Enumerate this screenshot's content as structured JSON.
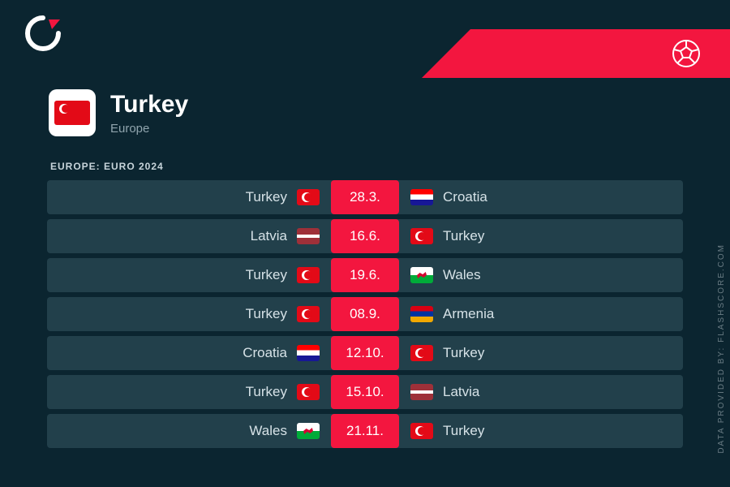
{
  "colors": {
    "background": "#0b2530",
    "accent": "#f3163f",
    "row_bg": "#22404b",
    "text_primary": "#ffffff",
    "text_secondary": "#90a4ad",
    "text_row": "#d6e2e7"
  },
  "header": {
    "team": "Turkey",
    "region": "Europe",
    "flag": "tr"
  },
  "section_title": "EUROPE: EURO 2024",
  "watermark": "DATA PROVIDED BY: FLASHSCORE.COM",
  "fixtures": [
    {
      "home": "Turkey",
      "home_flag": "tr",
      "date": "28.3.",
      "away": "Croatia",
      "away_flag": "hr"
    },
    {
      "home": "Latvia",
      "home_flag": "lv",
      "date": "16.6.",
      "away": "Turkey",
      "away_flag": "tr"
    },
    {
      "home": "Turkey",
      "home_flag": "tr",
      "date": "19.6.",
      "away": "Wales",
      "away_flag": "wa"
    },
    {
      "home": "Turkey",
      "home_flag": "tr",
      "date": "08.9.",
      "away": "Armenia",
      "away_flag": "am"
    },
    {
      "home": "Croatia",
      "home_flag": "hr",
      "date": "12.10.",
      "away": "Turkey",
      "away_flag": "tr"
    },
    {
      "home": "Turkey",
      "home_flag": "tr",
      "date": "15.10.",
      "away": "Latvia",
      "away_flag": "lv"
    },
    {
      "home": "Wales",
      "home_flag": "wa",
      "date": "21.11.",
      "away": "Turkey",
      "away_flag": "tr"
    }
  ]
}
